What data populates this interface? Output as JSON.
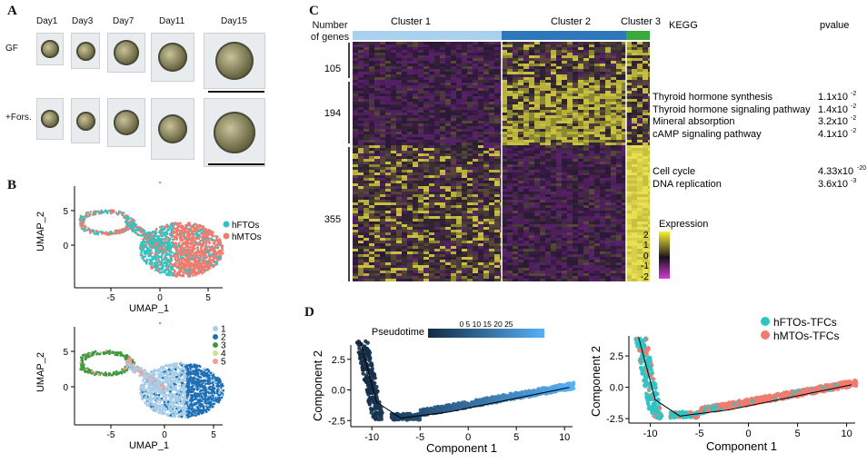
{
  "panels": {
    "a": "A",
    "b": "B",
    "c": "C",
    "d": "D"
  },
  "panel_a": {
    "days": [
      "Day1",
      "Day3",
      "Day7",
      "Day11",
      "Day15"
    ],
    "rows": [
      "GF",
      "+Fors."
    ]
  },
  "panel_b": {
    "top": {
      "xlabel": "UMAP_1",
      "ylabel": "UMAP_2",
      "xticks": [
        "-5",
        "0",
        "5"
      ],
      "yticks": [
        "5",
        "0"
      ],
      "legend": [
        {
          "name": "hFTOs",
          "color": "#2ec4c4"
        },
        {
          "name": "hMTOs",
          "color": "#f07b6e"
        }
      ]
    },
    "bottom": {
      "xlabel": "UMAP_1",
      "ylabel": "UMAP_2",
      "xticks": [
        "-5",
        "0",
        "5"
      ],
      "yticks": [
        "5",
        "0"
      ],
      "legend": [
        {
          "name": "1",
          "color": "#a8cde6"
        },
        {
          "name": "2",
          "color": "#1f6fb5"
        },
        {
          "name": "3",
          "color": "#3a9d3a"
        },
        {
          "name": "4",
          "color": "#cfe08e"
        },
        {
          "name": "5",
          "color": "#f29a97"
        }
      ]
    }
  },
  "panel_c": {
    "number_of_genes_label": "Number of genes",
    "clusters": [
      {
        "name": "Cluster 1",
        "color": "#a9d0ec"
      },
      {
        "name": "Cluster 2",
        "color": "#2e77bb"
      },
      {
        "name": "Cluster 3",
        "color": "#3aaa3a"
      }
    ],
    "gene_counts": [
      "105",
      "194",
      "355"
    ],
    "kegg_header": "KEGG",
    "pvalue_header": "pvalue",
    "kegg_terms": [
      {
        "term": "Thyroid hormone synthesis",
        "p": "1.1x10",
        "exp": "-2"
      },
      {
        "term": "Thyroid hormone signaling pathway",
        "p": "1.4x10",
        "exp": "-2"
      },
      {
        "term": "Mineral absorption",
        "p": "3.2x10",
        "exp": "-2"
      },
      {
        "term": "cAMP signaling pathway",
        "p": "4.1x10",
        "exp": "-2"
      },
      {
        "term": "Cell cycle",
        "p": "4.33x10",
        "exp": "-20"
      },
      {
        "term": "DNA replication",
        "p": "3.6x10",
        "exp": "-3"
      }
    ],
    "expression_label": "Expression",
    "expression_ticks": [
      "2",
      "1",
      "0",
      "-1",
      "-2"
    ]
  },
  "panel_d": {
    "left": {
      "xlabel": "Component 1",
      "ylabel": "Component 2",
      "xticks": [
        "-10",
        "-5",
        "0",
        "5",
        "10"
      ],
      "yticks": [
        "2.5",
        "0.0",
        "-2.5"
      ],
      "colorbar_label": "Pseudotime",
      "colorbar_ticks": "0  5 10 15 20 25"
    },
    "right": {
      "xlabel": "Component 1",
      "ylabel": "Component 2",
      "xticks": [
        "-10",
        "-5",
        "0",
        "5",
        "10"
      ],
      "yticks": [
        "2.5",
        "0.0",
        "-2.5"
      ],
      "legend": [
        {
          "name": "hFTOs-TFCs",
          "color": "#2ec4c4"
        },
        {
          "name": "hMTOs-TFCs",
          "color": "#f07b6e"
        }
      ]
    }
  }
}
